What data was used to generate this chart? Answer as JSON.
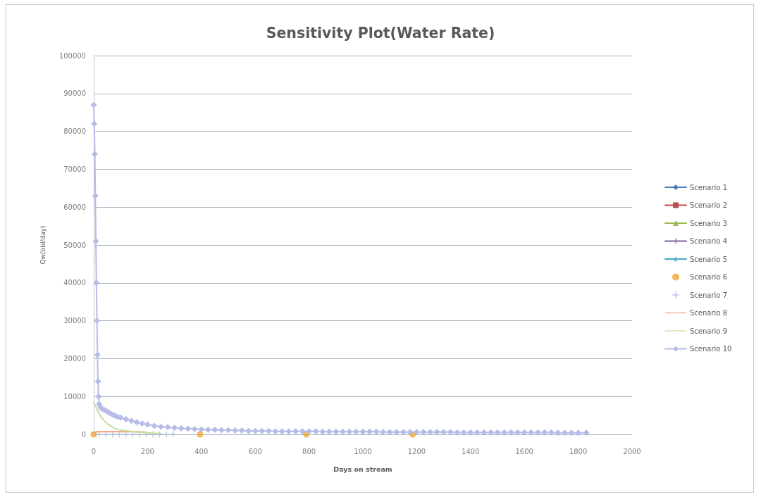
{
  "chart_data": {
    "type": "line",
    "title": "Sensitivity Plot(Water Rate)",
    "xlabel": "Days on stream",
    "ylabel": "Qw(bbl/day)",
    "xlim": [
      0,
      2000
    ],
    "xticks": [
      0,
      200,
      400,
      600,
      800,
      1000,
      1200,
      1400,
      1600,
      1800,
      2000
    ],
    "ylim": [
      0,
      100000
    ],
    "yticks": [
      0,
      10000,
      20000,
      30000,
      40000,
      50000,
      60000,
      70000,
      80000,
      90000,
      100000
    ],
    "grid": "y",
    "legend": "right",
    "series": [
      {
        "name": "Scenario 1",
        "color": "#4a7ebb",
        "marker": "diamond"
      },
      {
        "name": "Scenario 2",
        "color": "#be4b48",
        "marker": "square"
      },
      {
        "name": "Scenario 3",
        "color": "#98b954",
        "marker": "triangle"
      },
      {
        "name": "Scenario 4",
        "color": "#7d60a0",
        "marker": "cross"
      },
      {
        "name": "Scenario 5",
        "color": "#46aac5",
        "marker": "star"
      },
      {
        "name": "Scenario 6",
        "type": "scatter",
        "color": "#f0a830",
        "marker": "circle",
        "x": [
          0,
          395,
          790,
          1185
        ],
        "values": [
          0,
          0,
          0,
          0
        ]
      },
      {
        "name": "Scenario 7",
        "type": "scatter",
        "color": "#a5bce0",
        "marker": "cross",
        "x": [
          20,
          45,
          70,
          95,
          120,
          145,
          170,
          195,
          220,
          245,
          270,
          295
        ],
        "values": [
          0,
          0,
          0,
          0,
          0,
          0,
          0,
          0,
          0,
          0,
          0,
          0
        ]
      },
      {
        "name": "Scenario 8",
        "color": "#f0a080",
        "marker": "none",
        "x": [
          0,
          10,
          50,
          100,
          150,
          190
        ],
        "values": [
          100,
          700,
          700,
          700,
          700,
          600
        ]
      },
      {
        "name": "Scenario 9",
        "color": "#c8dca0",
        "marker": "none",
        "x": [
          0,
          10,
          20,
          30,
          50,
          75,
          100,
          150,
          200,
          250
        ],
        "values": [
          8400,
          7000,
          5500,
          4300,
          2800,
          1700,
          1100,
          700,
          400,
          200
        ]
      },
      {
        "name": "Scenario 10",
        "color": "#b6bce8",
        "marker": "diamond",
        "x": [
          0,
          2,
          4,
          6,
          8,
          10,
          12,
          14,
          16,
          18,
          20,
          25,
          30,
          40,
          50,
          60,
          70,
          80,
          90,
          100,
          120,
          140,
          160,
          180,
          200,
          225,
          250,
          275,
          300,
          325,
          350,
          375,
          400,
          425,
          450,
          475,
          500,
          525,
          550,
          575,
          600,
          625,
          650,
          675,
          700,
          725,
          750,
          775,
          800,
          825,
          850,
          875,
          900,
          925,
          950,
          975,
          1000,
          1025,
          1050,
          1075,
          1100,
          1125,
          1150,
          1175,
          1200,
          1225,
          1250,
          1275,
          1300,
          1325,
          1350,
          1375,
          1400,
          1425,
          1450,
          1475,
          1500,
          1525,
          1550,
          1575,
          1600,
          1625,
          1650,
          1675,
          1700,
          1725,
          1750,
          1775,
          1800,
          1830
        ],
        "values": [
          87000,
          82000,
          74000,
          63000,
          51000,
          40000,
          30000,
          21000,
          14000,
          10000,
          8000,
          7200,
          6800,
          6400,
          6000,
          5600,
          5200,
          4900,
          4600,
          4400,
          4000,
          3600,
          3200,
          2900,
          2600,
          2300,
          2000,
          1900,
          1700,
          1600,
          1500,
          1400,
          1300,
          1200,
          1200,
          1100,
          1100,
          1000,
          1000,
          900,
          900,
          900,
          900,
          800,
          800,
          800,
          800,
          800,
          800,
          800,
          700,
          700,
          700,
          700,
          700,
          700,
          700,
          700,
          700,
          600,
          600,
          600,
          600,
          600,
          600,
          600,
          600,
          600,
          600,
          600,
          500,
          500,
          500,
          500,
          500,
          500,
          500,
          500,
          500,
          500,
          500,
          500,
          500,
          500,
          500,
          400,
          400,
          400,
          400,
          400
        ]
      }
    ]
  }
}
